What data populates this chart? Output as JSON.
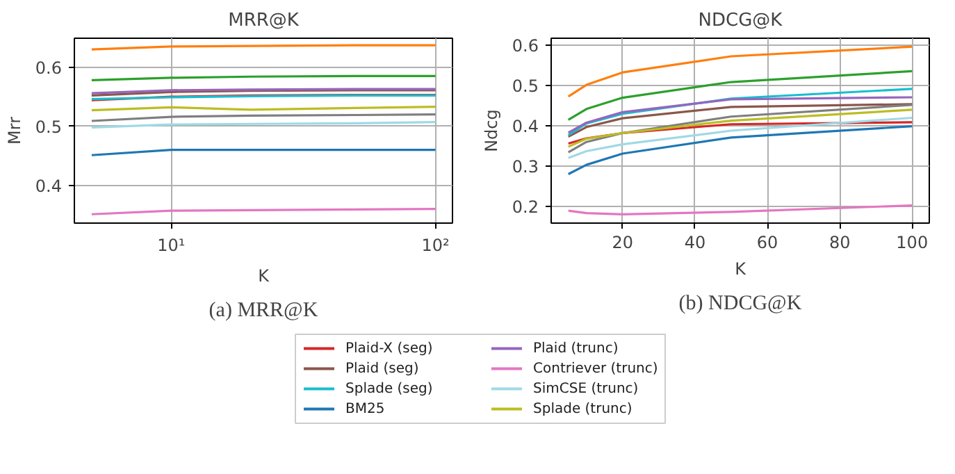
{
  "chart_data": [
    {
      "type": "line",
      "title": "MRR@K",
      "xlabel": "K",
      "ylabel": "Mrr",
      "log": "x",
      "grid": true,
      "legend": "bottom",
      "annotations": [
        "(a) MRR@K"
      ],
      "x": [
        5,
        10,
        20,
        50,
        100
      ],
      "xlim": [
        4.3,
        116
      ],
      "xticks": [
        {
          "value": 10,
          "label": "10¹"
        },
        {
          "value": 100,
          "label": "10²"
        }
      ],
      "ylim": [
        0.336,
        0.649
      ],
      "yticks": [
        0.4,
        0.5,
        0.6
      ],
      "series": [
        {
          "name": "Plaid-X (seg)",
          "color": "#d62728",
          "values": [
            0.544,
            0.55,
            0.552,
            0.553,
            0.553
          ]
        },
        {
          "name": "Plaid (seg)",
          "color": "#8c564b",
          "values": [
            0.552,
            0.558,
            0.56,
            0.561,
            0.561
          ]
        },
        {
          "name": null,
          "color": "#7f7f7f",
          "values": [
            0.509,
            0.516,
            0.518,
            0.519,
            0.52
          ]
        },
        {
          "name": "Splade (seg)",
          "color": "#17becf",
          "values": [
            0.546,
            0.549,
            0.551,
            0.552,
            0.552
          ]
        },
        {
          "name": "BM25",
          "color": "#1f77b4",
          "values": [
            0.451,
            0.46,
            0.46,
            0.46,
            0.46
          ]
        },
        {
          "name": null,
          "color": "#2ca02c",
          "values": [
            0.578,
            0.582,
            0.584,
            0.585,
            0.585
          ]
        },
        {
          "name": "Plaid (trunc)",
          "color": "#9467bd",
          "values": [
            0.556,
            0.561,
            0.562,
            0.563,
            0.563
          ]
        },
        {
          "name": "Contriever (trunc)",
          "color": "#e377c2",
          "values": [
            0.351,
            0.357,
            0.358,
            0.359,
            0.36
          ]
        },
        {
          "name": null,
          "color": "#ff7f0e",
          "values": [
            0.63,
            0.635,
            0.636,
            0.637,
            0.637
          ]
        },
        {
          "name": "SimCSE (trunc)",
          "color": "#9edae5",
          "values": [
            0.498,
            0.503,
            0.504,
            0.505,
            0.507
          ]
        },
        {
          "name": "Splade (trunc)",
          "color": "#bcbd22",
          "values": [
            0.527,
            0.532,
            0.528,
            0.531,
            0.533
          ]
        }
      ]
    },
    {
      "type": "line",
      "title": "NDCG@K",
      "xlabel": "K",
      "ylabel": "Ndcg",
      "grid": true,
      "annotations": [
        "(b) NDCG@K"
      ],
      "x": [
        5,
        10,
        20,
        50,
        100
      ],
      "xlim": [
        0.25,
        104.75
      ],
      "xticks": [
        20,
        40,
        60,
        80,
        100
      ],
      "ylim": [
        0.158,
        0.618
      ],
      "yticks": [
        0.2,
        0.3,
        0.4,
        0.5,
        0.6
      ],
      "series": [
        {
          "color": "#d62728",
          "values": [
            0.356,
            0.369,
            0.382,
            0.404,
            0.409
          ]
        },
        {
          "color": "#8c564b",
          "values": [
            0.373,
            0.397,
            0.419,
            0.447,
            0.454
          ]
        },
        {
          "color": "#7f7f7f",
          "values": [
            0.334,
            0.36,
            0.382,
            0.423,
            0.452
          ]
        },
        {
          "color": "#17becf",
          "values": [
            0.377,
            0.406,
            0.43,
            0.468,
            0.492
          ]
        },
        {
          "color": "#1f77b4",
          "values": [
            0.28,
            0.303,
            0.331,
            0.371,
            0.399
          ]
        },
        {
          "color": "#2ca02c",
          "values": [
            0.415,
            0.442,
            0.47,
            0.509,
            0.536
          ]
        },
        {
          "color": "#9467bd",
          "values": [
            0.383,
            0.408,
            0.434,
            0.466,
            0.471
          ]
        },
        {
          "color": "#e377c2",
          "values": [
            0.189,
            0.183,
            0.18,
            0.186,
            0.202
          ]
        },
        {
          "color": "#ff7f0e",
          "values": [
            0.473,
            0.502,
            0.533,
            0.573,
            0.597
          ]
        },
        {
          "color": "#9edae5",
          "values": [
            0.32,
            0.337,
            0.354,
            0.388,
            0.42
          ]
        },
        {
          "color": "#bcbd22",
          "values": [
            0.348,
            0.368,
            0.382,
            0.413,
            0.44
          ]
        }
      ]
    }
  ]
}
